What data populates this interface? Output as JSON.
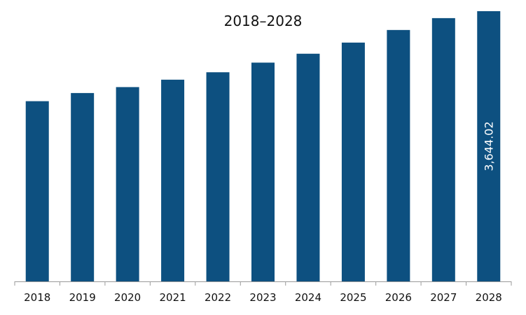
{
  "chart_data": {
    "type": "bar",
    "title": "2018–2028",
    "xlabel": "",
    "ylabel": "",
    "categories": [
      "2018",
      "2019",
      "2020",
      "2021",
      "2022",
      "2023",
      "2024",
      "2025",
      "2026",
      "2027",
      "2028"
    ],
    "values": [
      2430,
      2540,
      2620,
      2720,
      2820,
      2950,
      3070,
      3220,
      3390,
      3550,
      3644.02
    ],
    "data_labels": {
      "2028": "3,644.02"
    },
    "ylim": [
      0,
      3700
    ],
    "grid": false,
    "legend": "none",
    "colors": {
      "bar": "#0D5080",
      "axis": "#9a9a9a",
      "text": "#111111",
      "data_label": "#ffffff"
    }
  }
}
